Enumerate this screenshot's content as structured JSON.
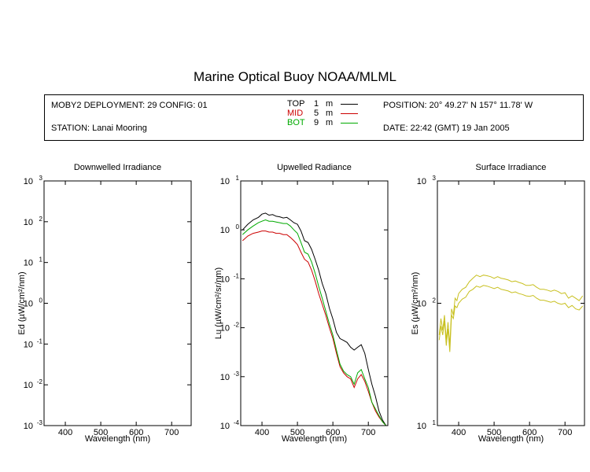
{
  "title": "Marine Optical Buoy NOAA/MLML",
  "info": {
    "deployment": "MOBY2 DEPLOYMENT: 29 CONFIG: 01",
    "station": "STATION: Lanai Mooring",
    "position": "POSITION: 20° 49.27' N   157° 11.78' W",
    "date": "DATE: 22:42 (GMT) 19 Jan 2005",
    "legend": [
      {
        "name": "TOP",
        "depth": "1",
        "unit": "m",
        "color": "#000000"
      },
      {
        "name": "MID",
        "depth": "5",
        "unit": "m",
        "color": "#cc0000"
      },
      {
        "name": "BOT",
        "depth": "9",
        "unit": "m",
        "color": "#00aa00"
      }
    ]
  },
  "chart_data": [
    {
      "type": "line",
      "title": "Downwelled Irradiance",
      "xlabel": "Wavelength (nm)",
      "ylabel": "Ed  (µW/cm²/nm)",
      "xlim": [
        340,
        755
      ],
      "ylim": [
        0.001,
        1000
      ],
      "yscale": "log",
      "xticks": [
        400,
        500,
        600,
        700
      ],
      "yticks": [
        0.001,
        0.01,
        0.1,
        1,
        10,
        100,
        1000
      ],
      "yticklabels": [
        [
          "10",
          "-3"
        ],
        [
          "10",
          "-2"
        ],
        [
          "10",
          "-1"
        ],
        [
          "10",
          "0"
        ],
        [
          "10",
          "1"
        ],
        [
          "10",
          "2"
        ],
        [
          "10",
          "3"
        ]
      ],
      "series": []
    },
    {
      "type": "line",
      "title": "Upwelled Radiance",
      "xlabel": "Wavelength (nm)",
      "ylabel": "Lu  (µW/cm²/sr/nm)",
      "xlim": [
        340,
        755
      ],
      "ylim": [
        0.0001,
        10
      ],
      "yscale": "log",
      "xticks": [
        400,
        500,
        600,
        700
      ],
      "yticks": [
        0.0001,
        0.001,
        0.01,
        0.1,
        1,
        10
      ],
      "yticklabels": [
        [
          "10",
          "-4"
        ],
        [
          "10",
          "-3"
        ],
        [
          "10",
          "-2"
        ],
        [
          "10",
          "-1"
        ],
        [
          "10",
          "0"
        ],
        [
          "10",
          "1"
        ]
      ],
      "series": [
        {
          "name": "TOP",
          "color": "#000000",
          "x": [
            345,
            360,
            375,
            390,
            400,
            410,
            420,
            430,
            440,
            450,
            460,
            470,
            480,
            490,
            500,
            510,
            520,
            530,
            540,
            550,
            560,
            570,
            580,
            590,
            600,
            610,
            620,
            630,
            640,
            650,
            660,
            670,
            680,
            690,
            700,
            710,
            720,
            730,
            740,
            750
          ],
          "y": [
            1.0,
            1.3,
            1.6,
            1.8,
            2.1,
            2.2,
            2.0,
            2.05,
            1.9,
            1.85,
            1.75,
            1.8,
            1.6,
            1.4,
            1.3,
            0.95,
            0.6,
            0.55,
            0.4,
            0.25,
            0.15,
            0.08,
            0.05,
            0.025,
            0.015,
            0.008,
            0.006,
            0.0055,
            0.005,
            0.004,
            0.0035,
            0.004,
            0.0045,
            0.003,
            0.0014,
            0.0007,
            0.0004,
            0.0002,
            0.00013,
            0.0001
          ]
        },
        {
          "name": "MID",
          "color": "#cc0000",
          "x": [
            345,
            360,
            375,
            390,
            400,
            410,
            420,
            430,
            440,
            450,
            460,
            470,
            480,
            490,
            500,
            510,
            520,
            530,
            540,
            550,
            560,
            570,
            580,
            590,
            600,
            610,
            620,
            630,
            640,
            650,
            660,
            670,
            680,
            690,
            700,
            710,
            720,
            730,
            740,
            750
          ],
          "y": [
            0.6,
            0.75,
            0.85,
            0.9,
            0.95,
            0.95,
            0.9,
            0.9,
            0.85,
            0.85,
            0.8,
            0.8,
            0.7,
            0.6,
            0.5,
            0.35,
            0.25,
            0.22,
            0.15,
            0.09,
            0.05,
            0.03,
            0.018,
            0.01,
            0.006,
            0.003,
            0.0016,
            0.0012,
            0.001,
            0.0009,
            0.0006,
            0.0009,
            0.0011,
            0.0008,
            0.0005,
            0.0003,
            0.0002,
            0.00015,
            0.00012,
            0.0001
          ]
        },
        {
          "name": "BOT",
          "color": "#00aa00",
          "x": [
            345,
            360,
            375,
            390,
            400,
            410,
            420,
            430,
            440,
            450,
            460,
            470,
            480,
            490,
            500,
            510,
            520,
            530,
            540,
            550,
            560,
            570,
            580,
            590,
            600,
            610,
            620,
            630,
            640,
            650,
            660,
            670,
            680,
            690,
            700,
            710,
            720,
            730,
            740,
            750
          ],
          "y": [
            0.8,
            1.0,
            1.2,
            1.4,
            1.5,
            1.6,
            1.5,
            1.5,
            1.45,
            1.4,
            1.35,
            1.35,
            1.2,
            1.0,
            0.85,
            0.55,
            0.35,
            0.32,
            0.22,
            0.13,
            0.07,
            0.04,
            0.022,
            0.012,
            0.007,
            0.0035,
            0.0018,
            0.0013,
            0.0011,
            0.001,
            0.0007,
            0.0012,
            0.0014,
            0.0009,
            0.0006,
            0.0003,
            0.00022,
            0.00016,
            0.00012,
            0.0001
          ]
        }
      ]
    },
    {
      "type": "line",
      "title": "Surface Irradiance",
      "xlabel": "Wavelength (nm)",
      "ylabel": "Es  (µW/cm²/nm)",
      "xlim": [
        340,
        755
      ],
      "ylim": [
        10,
        1000
      ],
      "yscale": "log",
      "xticks": [
        400,
        500,
        600,
        700
      ],
      "yticks": [
        10,
        100,
        1000
      ],
      "yticklabels": [
        [
          "10",
          "1"
        ],
        [
          "10",
          "2"
        ],
        [
          "10",
          "3"
        ]
      ],
      "series": [
        {
          "name": "Es upper",
          "color": "#c8c020",
          "x": [
            345,
            350,
            355,
            360,
            365,
            370,
            375,
            380,
            385,
            390,
            395,
            400,
            410,
            420,
            430,
            440,
            450,
            460,
            470,
            480,
            490,
            500,
            510,
            520,
            530,
            540,
            550,
            560,
            570,
            580,
            590,
            600,
            610,
            620,
            630,
            640,
            650,
            660,
            670,
            680,
            690,
            700,
            710,
            720,
            730,
            740,
            750
          ],
          "y": [
            55,
            75,
            60,
            80,
            50,
            70,
            45,
            90,
            80,
            110,
            105,
            120,
            130,
            135,
            150,
            160,
            170,
            165,
            170,
            168,
            165,
            160,
            165,
            160,
            158,
            155,
            150,
            152,
            148,
            145,
            140,
            140,
            142,
            135,
            130,
            130,
            128,
            125,
            128,
            125,
            120,
            122,
            110,
            115,
            110,
            105,
            115
          ]
        },
        {
          "name": "Es lower",
          "color": "#c8c020",
          "x": [
            345,
            350,
            355,
            360,
            365,
            370,
            375,
            380,
            385,
            390,
            395,
            400,
            410,
            420,
            430,
            440,
            450,
            460,
            470,
            480,
            490,
            500,
            510,
            520,
            530,
            540,
            550,
            560,
            570,
            580,
            590,
            600,
            610,
            620,
            630,
            640,
            650,
            660,
            670,
            680,
            690,
            700,
            710,
            720,
            730,
            740,
            750
          ],
          "y": [
            50,
            65,
            55,
            72,
            45,
            62,
            40,
            80,
            75,
            95,
            92,
            100,
            108,
            112,
            125,
            130,
            138,
            135,
            140,
            138,
            135,
            132,
            135,
            130,
            128,
            126,
            122,
            124,
            120,
            118,
            115,
            114,
            116,
            110,
            106,
            106,
            104,
            102,
            104,
            100,
            98,
            100,
            92,
            96,
            90,
            88,
            95
          ]
        }
      ]
    }
  ]
}
